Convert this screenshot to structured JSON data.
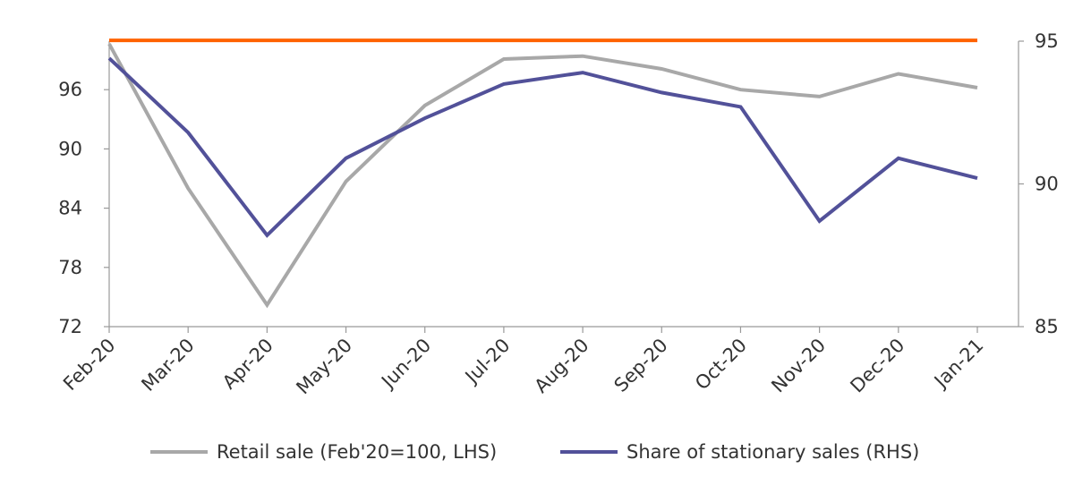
{
  "chart_data": {
    "type": "line",
    "title": "",
    "categories": [
      "Feb-20",
      "Mar-20",
      "Apr-20",
      "May-20",
      "Jun-20",
      "Jul-20",
      "Aug-20",
      "Sep-20",
      "Oct-20",
      "Nov-20",
      "Dec-20",
      "Jan-21"
    ],
    "left_axis": {
      "min": 72,
      "max": 102,
      "ticks": [
        72,
        78,
        84,
        90,
        96
      ]
    },
    "right_axis": {
      "min": 85,
      "max": 95,
      "ticks": [
        85,
        90,
        95
      ]
    },
    "reference_line": {
      "axis": "left",
      "value": 100,
      "color": "#ff6200"
    },
    "series": [
      {
        "name": "Retail sale (Feb'20=100, LHS)",
        "axis": "left",
        "color": "#a8a8a8",
        "values": [
          100,
          86,
          74.2,
          86.7,
          94.4,
          99.1,
          99.4,
          98.1,
          96.0,
          95.3,
          97.6,
          96.2
        ]
      },
      {
        "name": "Share of stationary sales (RHS)",
        "axis": "right",
        "color": "#525199",
        "values": [
          94.4,
          91.8,
          88.2,
          90.9,
          92.3,
          93.5,
          93.9,
          93.2,
          92.7,
          88.7,
          90.9,
          90.2
        ]
      }
    ],
    "legend_position": "bottom"
  }
}
